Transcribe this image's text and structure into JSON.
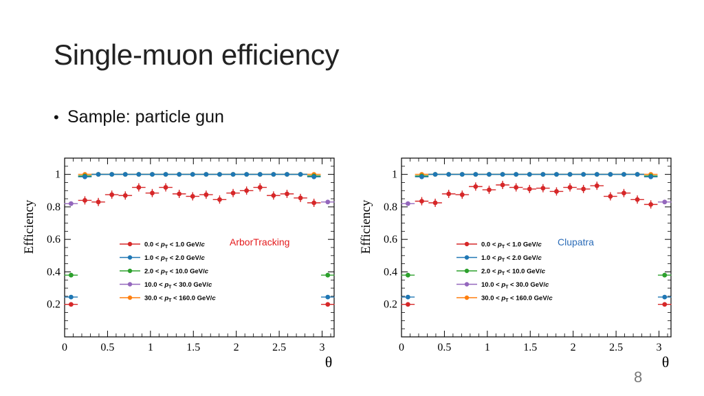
{
  "slide": {
    "title": "Single-muon efficiency",
    "bullet": "Sample: particle gun",
    "page_number": "8"
  },
  "colors": {
    "series_0": "#d62728",
    "series_1": "#1f77b4",
    "series_2": "#2ca02c",
    "series_3": "#9467bd",
    "series_4": "#ff7f0e",
    "label_arbor": "#e41a1c",
    "label_clupatra": "#2b6cb8"
  },
  "chart_data": [
    {
      "type": "scatter",
      "annotation": "ArborTracking",
      "annotation_color": "#e41a1c",
      "xlabel": "θ",
      "ylabel": "Efficiency",
      "xlim": [
        0,
        3.14
      ],
      "ylim": [
        0,
        1.1
      ],
      "xticks": [
        "0",
        "0.5",
        "1",
        "1.5",
        "2",
        "2.5",
        "3"
      ],
      "yticks": [
        "0.2",
        "0.4",
        "0.6",
        "0.8",
        "1"
      ],
      "grid": false,
      "legend_position": "center-left",
      "x": [
        0.075,
        0.236,
        0.393,
        0.55,
        0.707,
        0.864,
        1.021,
        1.178,
        1.335,
        1.492,
        1.649,
        1.806,
        1.963,
        2.12,
        2.277,
        2.434,
        2.591,
        2.748,
        2.905,
        3.066
      ],
      "series": [
        {
          "name": "0.0 < p_T < 1.0 GeV/c",
          "label": [
            "0.0 < ",
            "p",
            "T",
            " < 1.0 GeV/",
            "c"
          ],
          "values": [
            0.2,
            0.84,
            0.83,
            0.875,
            0.87,
            0.92,
            0.885,
            0.92,
            0.88,
            0.865,
            0.875,
            0.845,
            0.885,
            0.9,
            0.92,
            0.87,
            0.88,
            0.855,
            0.825,
            0.2
          ]
        },
        {
          "name": "1.0 < p_T < 2.0 GeV/c",
          "label": [
            "1.0 < ",
            "p",
            "T",
            " < 2.0 GeV/",
            "c"
          ],
          "values": [
            0.245,
            0.985,
            1.0,
            1.0,
            1.0,
            1.0,
            1.0,
            1.0,
            1.0,
            1.0,
            1.0,
            1.0,
            1.0,
            1.0,
            1.0,
            1.0,
            1.0,
            1.0,
            0.985,
            0.245
          ]
        },
        {
          "name": "2.0 < p_T < 10.0 GeV/c",
          "label": [
            "2.0 < ",
            "p",
            "T",
            " < 10.0 GeV/",
            "c"
          ],
          "values": [
            0.38,
            0.99,
            1.0,
            1.0,
            1.0,
            1.0,
            1.0,
            1.0,
            1.0,
            1.0,
            1.0,
            1.0,
            1.0,
            1.0,
            1.0,
            1.0,
            1.0,
            1.0,
            0.99,
            0.38
          ]
        },
        {
          "name": "10.0 < p_T < 30.0 GeV/c",
          "label": [
            "10.0 < ",
            "p",
            "T",
            " < 30.0 GeV/",
            "c"
          ],
          "values": [
            0.82,
            0.99,
            1.0,
            1.0,
            1.0,
            1.0,
            1.0,
            1.0,
            1.0,
            1.0,
            1.0,
            1.0,
            1.0,
            1.0,
            1.0,
            1.0,
            1.0,
            1.0,
            0.99,
            0.83
          ]
        },
        {
          "name": "30.0 < p_T < 160.0 GeV/c",
          "label": [
            "30.0 < ",
            "p",
            "T",
            " < 160.0 GeV/",
            "c"
          ],
          "values": [
            null,
            1.0,
            1.0,
            1.0,
            1.0,
            1.0,
            1.0,
            1.0,
            1.0,
            1.0,
            1.0,
            1.0,
            1.0,
            1.0,
            1.0,
            1.0,
            1.0,
            1.0,
            1.0,
            null
          ]
        }
      ]
    },
    {
      "type": "scatter",
      "annotation": "Clupatra",
      "annotation_color": "#2b6cb8",
      "xlabel": "θ",
      "ylabel": "Efficiency",
      "xlim": [
        0,
        3.14
      ],
      "ylim": [
        0,
        1.1
      ],
      "xticks": [
        "0",
        "0.5",
        "1",
        "1.5",
        "2",
        "2.5",
        "3"
      ],
      "yticks": [
        "0.2",
        "0.4",
        "0.6",
        "0.8",
        "1"
      ],
      "grid": false,
      "legend_position": "center-left",
      "x": [
        0.075,
        0.236,
        0.393,
        0.55,
        0.707,
        0.864,
        1.021,
        1.178,
        1.335,
        1.492,
        1.649,
        1.806,
        1.963,
        2.12,
        2.277,
        2.434,
        2.591,
        2.748,
        2.905,
        3.066
      ],
      "series": [
        {
          "name": "0.0 < p_T < 1.0 GeV/c",
          "label": [
            "0.0 < ",
            "p",
            "T",
            " < 1.0 GeV/",
            "c"
          ],
          "values": [
            0.2,
            0.835,
            0.825,
            0.88,
            0.875,
            0.925,
            0.905,
            0.935,
            0.92,
            0.91,
            0.915,
            0.895,
            0.92,
            0.91,
            0.93,
            0.865,
            0.885,
            0.845,
            0.815,
            0.2
          ]
        },
        {
          "name": "1.0 < p_T < 2.0 GeV/c",
          "label": [
            "1.0 < ",
            "p",
            "T",
            " < 2.0 GeV/",
            "c"
          ],
          "values": [
            0.245,
            0.985,
            1.0,
            1.0,
            1.0,
            1.0,
            1.0,
            1.0,
            1.0,
            1.0,
            1.0,
            1.0,
            1.0,
            1.0,
            1.0,
            1.0,
            1.0,
            1.0,
            0.985,
            0.245
          ]
        },
        {
          "name": "2.0 < p_T < 10.0 GeV/c",
          "label": [
            "2.0 < ",
            "p",
            "T",
            " < 10.0 GeV/",
            "c"
          ],
          "values": [
            0.38,
            0.99,
            1.0,
            1.0,
            1.0,
            1.0,
            1.0,
            1.0,
            1.0,
            1.0,
            1.0,
            1.0,
            1.0,
            1.0,
            1.0,
            1.0,
            1.0,
            1.0,
            0.99,
            0.38
          ]
        },
        {
          "name": "10.0 < p_T < 30.0 GeV/c",
          "label": [
            "10.0 < ",
            "p",
            "T",
            " < 30.0 GeV/",
            "c"
          ],
          "values": [
            0.82,
            0.99,
            1.0,
            1.0,
            1.0,
            1.0,
            1.0,
            1.0,
            1.0,
            1.0,
            1.0,
            1.0,
            1.0,
            1.0,
            1.0,
            1.0,
            1.0,
            1.0,
            0.99,
            0.83
          ]
        },
        {
          "name": "30.0 < p_T < 160.0 GeV/c",
          "label": [
            "30.0 < ",
            "p",
            "T",
            " < 160.0 GeV/",
            "c"
          ],
          "values": [
            null,
            1.0,
            1.0,
            1.0,
            1.0,
            1.0,
            1.0,
            1.0,
            1.0,
            1.0,
            1.0,
            1.0,
            1.0,
            1.0,
            1.0,
            1.0,
            1.0,
            1.0,
            1.0,
            null
          ]
        }
      ]
    }
  ]
}
